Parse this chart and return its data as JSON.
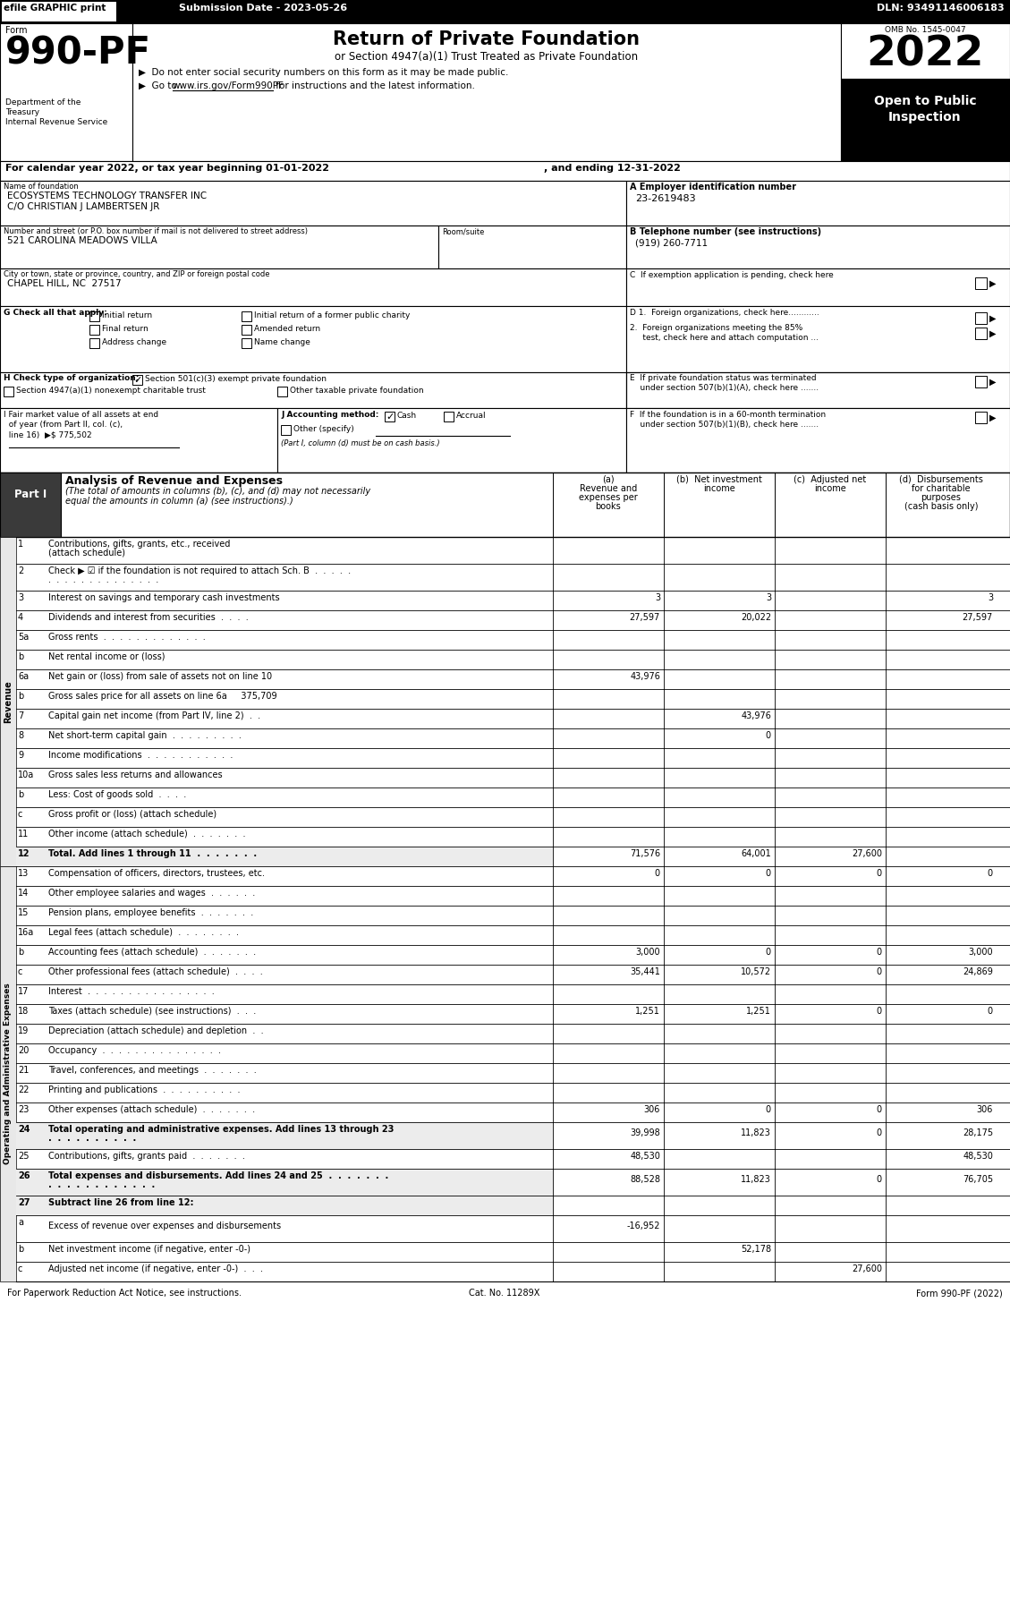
{
  "efile_text": "efile GRAPHIC print",
  "submission_date": "Submission Date - 2023-05-26",
  "dln": "DLN: 93491146006183",
  "form_number": "990-PF",
  "title": "Return of Private Foundation",
  "subtitle": "or Section 4947(a)(1) Trust Treated as Private Foundation",
  "bullet1": "▶  Do not enter social security numbers on this form as it may be made public.",
  "bullet2_pre": "▶  Go to ",
  "bullet2_url": "www.irs.gov/Form990PF",
  "bullet2_post": " for instructions and the latest information.",
  "year": "2022",
  "omb": "OMB No. 1545-0047",
  "dept1": "Department of the",
  "dept2": "Treasury",
  "dept3": "Internal Revenue Service",
  "cal_year_line": "For calendar year 2022, or tax year beginning 01-01-2022",
  "ending_line": ", and ending 12-31-2022",
  "name_label": "Name of foundation",
  "name_line1": "ECOSYSTEMS TECHNOLOGY TRANSFER INC",
  "name_line2": "C/O CHRISTIAN J LAMBERTSEN JR",
  "ein_label": "A Employer identification number",
  "ein": "23-2619483",
  "street_label": "Number and street (or P.O. box number if mail is not delivered to street address)",
  "room_label": "Room/suite",
  "street": "521 CAROLINA MEADOWS VILLA",
  "phone_label": "B Telephone number (see instructions)",
  "phone": "(919) 260-7711",
  "city_label": "City or town, state or province, country, and ZIP or foreign postal code",
  "city": "CHAPEL HILL, NC  27517",
  "c_label": "C  If exemption application is pending, check here",
  "g_label": "G Check all that apply:",
  "d1_label": "D 1.  Foreign organizations, check here............",
  "d2_line1": "2.  Foreign organizations meeting the 85%",
  "d2_line2": "     test, check here and attach computation ...",
  "e_line1": "E  If private foundation status was terminated",
  "e_line2": "    under section 507(b)(1)(A), check here .......",
  "f_line1": "F  If the foundation is in a 60-month termination",
  "f_line2": "    under section 507(b)(1)(B), check here .......",
  "h_intro": "H Check type of organization:",
  "h_checked_label": "Section 501(c)(3) exempt private foundation",
  "h_unch1": "Section 4947(a)(1) nonexempt charitable trust",
  "h_unch2": "Other taxable private foundation",
  "i_line1": "I Fair market value of all assets at end",
  "i_line2": "  of year (from Part II, col. (c),",
  "i_line3": "  line 16)  ▶$ 775,502",
  "j_intro": "J Accounting method:",
  "j_cash": "Cash",
  "j_accrual": "Accrual",
  "j_other": "Other (specify)",
  "j_note": "(Part I, column (d) must be on cash basis.)",
  "part1_label": "Part I",
  "part1_title": "Analysis of Revenue and Expenses",
  "part1_italic": "(The total of amounts in columns (b), (c), and (d) may not necessarily equal the amounts in column (a) (see instructions).)",
  "col_a1": "(a)",
  "col_a2": "Revenue and",
  "col_a3": "expenses per",
  "col_a4": "books",
  "col_b1": "(b)  Net investment",
  "col_b2": "income",
  "col_c1": "(c)  Adjusted net",
  "col_c2": "income",
  "col_d1": "(d)  Disbursements",
  "col_d2": "for charitable",
  "col_d3": "purposes",
  "col_d4": "(cash basis only)",
  "revenue_label": "Revenue",
  "opex_label": "Operating and Administrative Expenses",
  "lines": [
    {
      "num": "1",
      "desc": "Contributions, gifts, grants, etc., received (attach schedule)",
      "a": "",
      "b": "",
      "c": "",
      "d": "",
      "tworow": true,
      "bold": false
    },
    {
      "num": "2",
      "desc": "Check ▶ ☑ if the foundation is not required to attach Sch. B  .  .  .  .  .  .  .  .  .  .  .  .  .  .  .  .  .  .  .",
      "a": "",
      "b": "",
      "c": "",
      "d": "",
      "tworow": true,
      "bold": false
    },
    {
      "num": "3",
      "desc": "Interest on savings and temporary cash investments",
      "a": "3",
      "b": "3",
      "c": "",
      "d": "3",
      "tworow": false,
      "bold": false
    },
    {
      "num": "4",
      "desc": "Dividends and interest from securities  .  .  .  .",
      "a": "27,597",
      "b": "20,022",
      "c": "",
      "d": "27,597",
      "tworow": false,
      "bold": false
    },
    {
      "num": "5a",
      "desc": "Gross rents  .  .  .  .  .  .  .  .  .  .  .  .  .",
      "a": "",
      "b": "",
      "c": "",
      "d": "",
      "tworow": false,
      "bold": false
    },
    {
      "num": "b",
      "desc": "Net rental income or (loss)",
      "a": "",
      "b": "",
      "c": "",
      "d": "",
      "tworow": false,
      "bold": false,
      "underline_a": true
    },
    {
      "num": "6a",
      "desc": "Net gain or (loss) from sale of assets not on line 10",
      "a": "43,976",
      "b": "",
      "c": "",
      "d": "",
      "tworow": false,
      "bold": false
    },
    {
      "num": "b",
      "desc": "Gross sales price for all assets on line 6a     375,709",
      "a": "",
      "b": "",
      "c": "",
      "d": "",
      "tworow": false,
      "bold": false
    },
    {
      "num": "7",
      "desc": "Capital gain net income (from Part IV, line 2)  .  .",
      "a": "",
      "b": "43,976",
      "c": "",
      "d": "",
      "tworow": false,
      "bold": false
    },
    {
      "num": "8",
      "desc": "Net short-term capital gain  .  .  .  .  .  .  .  .  .",
      "a": "",
      "b": "0",
      "c": "",
      "d": "",
      "tworow": false,
      "bold": false
    },
    {
      "num": "9",
      "desc": "Income modifications  .  .  .  .  .  .  .  .  .  .  .",
      "a": "",
      "b": "",
      "c": "",
      "d": "",
      "tworow": false,
      "bold": false
    },
    {
      "num": "10a",
      "desc": "Gross sales less returns and allowances",
      "a": "",
      "b": "",
      "c": "",
      "d": "",
      "tworow": false,
      "bold": false
    },
    {
      "num": "b",
      "desc": "Less: Cost of goods sold  .  .  .  .",
      "a": "",
      "b": "",
      "c": "",
      "d": "",
      "tworow": false,
      "bold": false
    },
    {
      "num": "c",
      "desc": "Gross profit or (loss) (attach schedule)",
      "a": "",
      "b": "",
      "c": "",
      "d": "",
      "tworow": false,
      "bold": false
    },
    {
      "num": "11",
      "desc": "Other income (attach schedule)  .  .  .  .  .  .  .",
      "a": "",
      "b": "",
      "c": "",
      "d": "",
      "tworow": false,
      "bold": false
    },
    {
      "num": "12",
      "desc": "Total. Add lines 1 through 11  .  .  .  .  .  .  .",
      "a": "71,576",
      "b": "64,001",
      "c": "27,600",
      "d": "",
      "tworow": false,
      "bold": true
    },
    {
      "num": "13",
      "desc": "Compensation of officers, directors, trustees, etc.",
      "a": "0",
      "b": "0",
      "c": "0",
      "d": "0",
      "tworow": false,
      "bold": false
    },
    {
      "num": "14",
      "desc": "Other employee salaries and wages  .  .  .  .  .  .",
      "a": "",
      "b": "",
      "c": "",
      "d": "",
      "tworow": false,
      "bold": false
    },
    {
      "num": "15",
      "desc": "Pension plans, employee benefits  .  .  .  .  .  .  .",
      "a": "",
      "b": "",
      "c": "",
      "d": "",
      "tworow": false,
      "bold": false
    },
    {
      "num": "16a",
      "desc": "Legal fees (attach schedule)  .  .  .  .  .  .  .  .",
      "a": "",
      "b": "",
      "c": "",
      "d": "",
      "tworow": false,
      "bold": false
    },
    {
      "num": "b",
      "desc": "Accounting fees (attach schedule)  .  .  .  .  .  .  .",
      "a": "3,000",
      "b": "0",
      "c": "0",
      "d": "3,000",
      "tworow": false,
      "bold": false
    },
    {
      "num": "c",
      "desc": "Other professional fees (attach schedule)  .  .  .  .",
      "a": "35,441",
      "b": "10,572",
      "c": "0",
      "d": "24,869",
      "tworow": false,
      "bold": false
    },
    {
      "num": "17",
      "desc": "Interest  .  .  .  .  .  .  .  .  .  .  .  .  .  .  .  .",
      "a": "",
      "b": "",
      "c": "",
      "d": "",
      "tworow": false,
      "bold": false
    },
    {
      "num": "18",
      "desc": "Taxes (attach schedule) (see instructions)  .  .  .",
      "a": "1,251",
      "b": "1,251",
      "c": "0",
      "d": "0",
      "tworow": false,
      "bold": false
    },
    {
      "num": "19",
      "desc": "Depreciation (attach schedule) and depletion  .  .",
      "a": "",
      "b": "",
      "c": "",
      "d": "",
      "tworow": false,
      "bold": false
    },
    {
      "num": "20",
      "desc": "Occupancy  .  .  .  .  .  .  .  .  .  .  .  .  .  .  .",
      "a": "",
      "b": "",
      "c": "",
      "d": "",
      "tworow": false,
      "bold": false
    },
    {
      "num": "21",
      "desc": "Travel, conferences, and meetings  .  .  .  .  .  .  .",
      "a": "",
      "b": "",
      "c": "",
      "d": "",
      "tworow": false,
      "bold": false
    },
    {
      "num": "22",
      "desc": "Printing and publications  .  .  .  .  .  .  .  .  .  .",
      "a": "",
      "b": "",
      "c": "",
      "d": "",
      "tworow": false,
      "bold": false
    },
    {
      "num": "23",
      "desc": "Other expenses (attach schedule)  .  .  .  .  .  .  .",
      "a": "306",
      "b": "0",
      "c": "0",
      "d": "306",
      "tworow": false,
      "bold": false
    },
    {
      "num": "24",
      "desc": "Total operating and administrative expenses. Add lines 13 through 23  .  .  .  .  .  .  .  .  .  .",
      "a": "39,998",
      "b": "11,823",
      "c": "0",
      "d": "28,175",
      "tworow": true,
      "bold": true
    },
    {
      "num": "25",
      "desc": "Contributions, gifts, grants paid  .  .  .  .  .  .  .",
      "a": "48,530",
      "b": "",
      "c": "",
      "d": "48,530",
      "tworow": false,
      "bold": false
    },
    {
      "num": "26",
      "desc": "Total expenses and disbursements. Add lines 24 and 25  .  .  .  .  .  .  .  .  .  .  .  .  .  .  .  .  .  .  .",
      "a": "88,528",
      "b": "11,823",
      "c": "0",
      "d": "76,705",
      "tworow": true,
      "bold": true
    },
    {
      "num": "27",
      "desc": "Subtract line 26 from line 12:",
      "a": "",
      "b": "",
      "c": "",
      "d": "",
      "tworow": false,
      "bold": true
    },
    {
      "num": "a",
      "desc": "Excess of revenue over expenses and disbursements",
      "a": "-16,952",
      "b": "",
      "c": "",
      "d": "",
      "tworow": true,
      "bold": false
    },
    {
      "num": "b",
      "desc": "Net investment income (if negative, enter -0-)",
      "a": "",
      "b": "52,178",
      "c": "",
      "d": "",
      "tworow": false,
      "bold": false
    },
    {
      "num": "c",
      "desc": "Adjusted net income (if negative, enter -0-)  .  .  .",
      "a": "",
      "b": "",
      "c": "27,600",
      "d": "",
      "tworow": false,
      "bold": false
    }
  ],
  "footer_left": "For Paperwork Reduction Act Notice, see instructions.",
  "footer_cat": "Cat. No. 11289X",
  "footer_right": "Form 990-PF (2022)"
}
